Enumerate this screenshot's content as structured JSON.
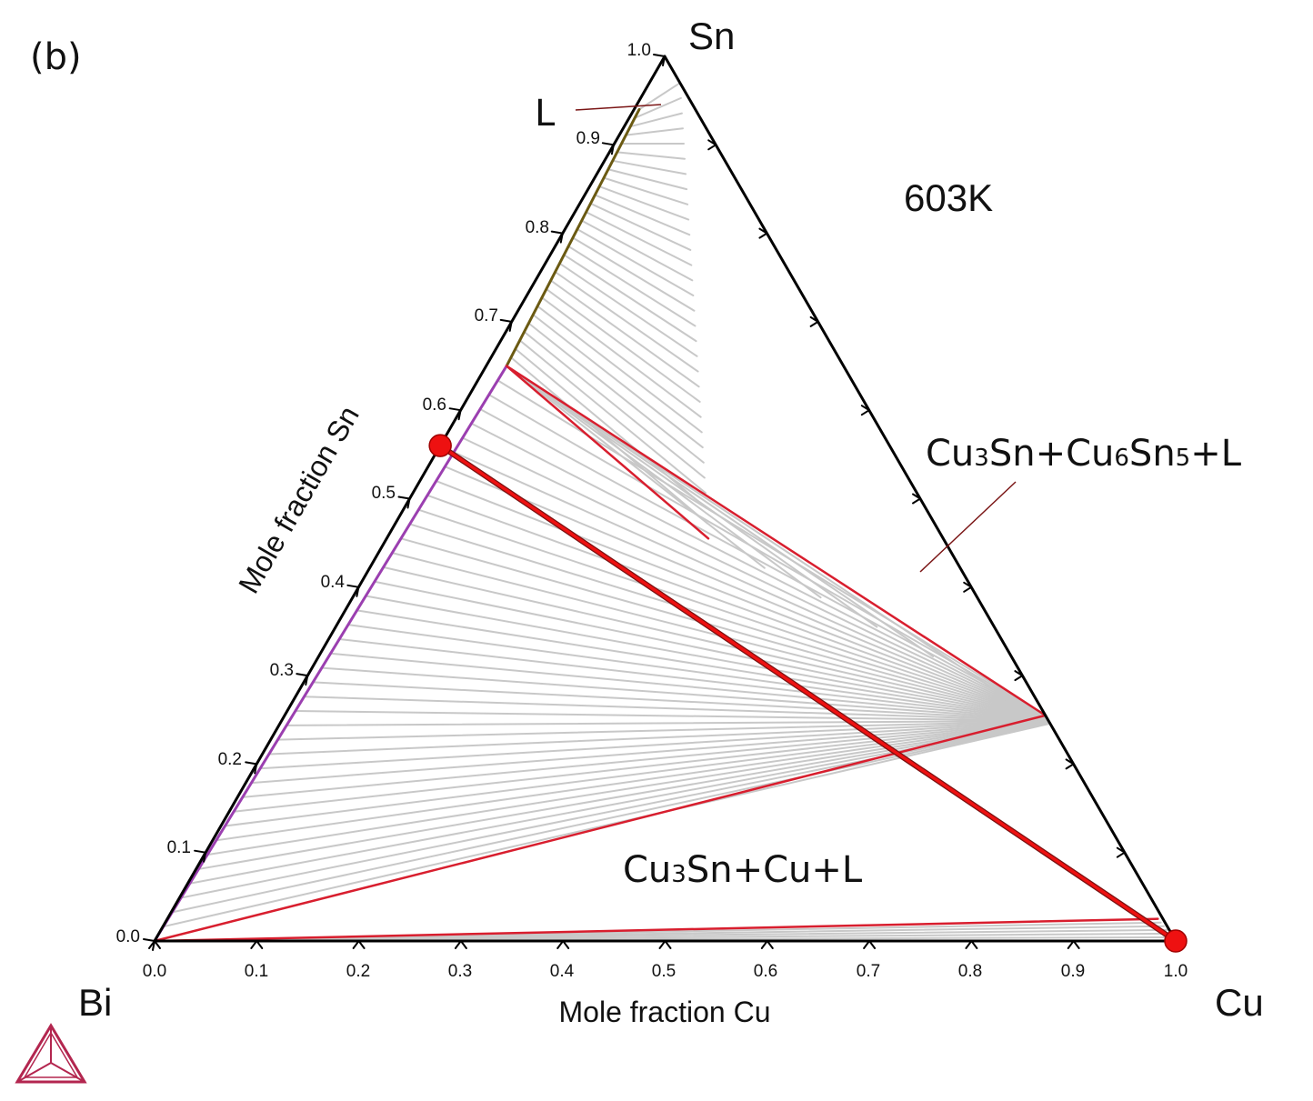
{
  "panel_label": "(b)",
  "temperature_label": "603K",
  "vertices": {
    "top": "Sn",
    "left": "Bi",
    "right": "Cu"
  },
  "axes": {
    "bottom_title": "Mole fraction Cu",
    "left_title": "Mole fraction Sn",
    "bottom_ticks": [
      "0.0",
      "0.1",
      "0.2",
      "0.3",
      "0.4",
      "0.5",
      "0.6",
      "0.7",
      "0.8",
      "0.9",
      "1.0"
    ],
    "left_ticks": [
      "0.0",
      "0.1",
      "0.2",
      "0.3",
      "0.4",
      "0.5",
      "0.6",
      "0.7",
      "0.8",
      "0.9",
      "1.0"
    ]
  },
  "regions": {
    "liquid": "L",
    "three_phase_top": {
      "parts": [
        [
          "Cu",
          "normal"
        ],
        [
          "3",
          "small"
        ],
        [
          "Sn+Cu",
          "normal"
        ],
        [
          "6",
          "small"
        ],
        [
          "Sn",
          "normal"
        ],
        [
          "5",
          "small"
        ],
        [
          "+L",
          "normal"
        ]
      ]
    },
    "three_phase_bottom": {
      "parts": [
        [
          "Cu",
          "normal"
        ],
        [
          "3",
          "small"
        ],
        [
          "Sn+Cu+L",
          "normal"
        ]
      ]
    }
  },
  "colors": {
    "tie_line": "#c8c8c8",
    "phase_boundary_red": "#d81e2e",
    "liquidus_olive": "#6b5a12",
    "liquidus_purple": "#9b3fb0",
    "marker": "#ee1111",
    "leader": "#7a1515",
    "logo": "#b3264f"
  },
  "chart_data": {
    "type": "ternary",
    "components": [
      "Bi",
      "Cu",
      "Sn"
    ],
    "temperature": "603K",
    "composition_axis_range": [
      0,
      1
    ],
    "tie_triangles": [
      {
        "name": "Cu3Sn+Cu6Sn5+L",
        "vertices_xCu_xSn": [
          [
            0.02,
            0.65
          ],
          [
            0.315,
            0.455
          ],
          [
            0.745,
            0.255
          ]
        ]
      },
      {
        "name": "Cu3Sn+Cu+L",
        "vertices_xCu_xSn": [
          [
            0.0,
            0.0
          ],
          [
            0.745,
            0.255
          ],
          [
            0.97,
            0.025
          ]
        ]
      }
    ],
    "liquidus_olive_xCu_xSn": [
      [
        0.005,
        0.94
      ],
      [
        0.02,
        0.65
      ]
    ],
    "liquidus_purple_xCu_xSn": [
      [
        0.02,
        0.65
      ],
      [
        0.0,
        0.0
      ]
    ],
    "highlight_line_xCu_xSn": [
      [
        0.0,
        0.56
      ],
      [
        1.0,
        0.0
      ]
    ],
    "markers_xCu_xSn": [
      [
        0.0,
        0.56
      ],
      [
        1.0,
        0.0
      ]
    ]
  }
}
